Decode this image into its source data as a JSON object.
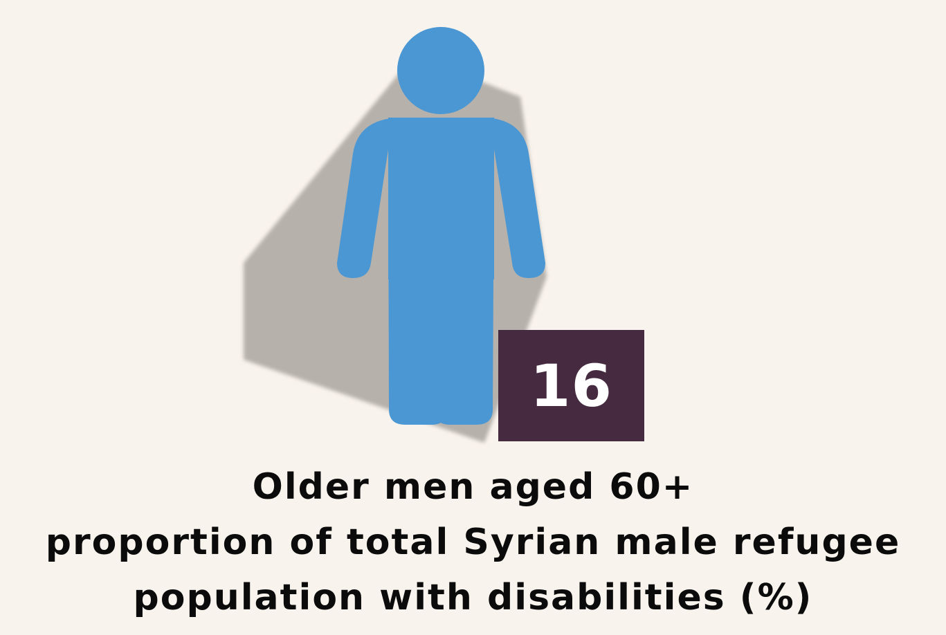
{
  "infographic": {
    "stat_value": "16",
    "caption_lines": [
      "Older men aged 60+",
      "proportion of total Syrian male refugee",
      "population with disabilities  (%)"
    ]
  },
  "icons": {
    "figure": "male-person-icon"
  },
  "colors": {
    "background": "#f8f3ec",
    "figure": "#4a97d4",
    "shadow": "#b6b1aa",
    "stat_box": "#462a40",
    "stat_text": "#ffffff",
    "caption_text": "#0b0b0b"
  }
}
